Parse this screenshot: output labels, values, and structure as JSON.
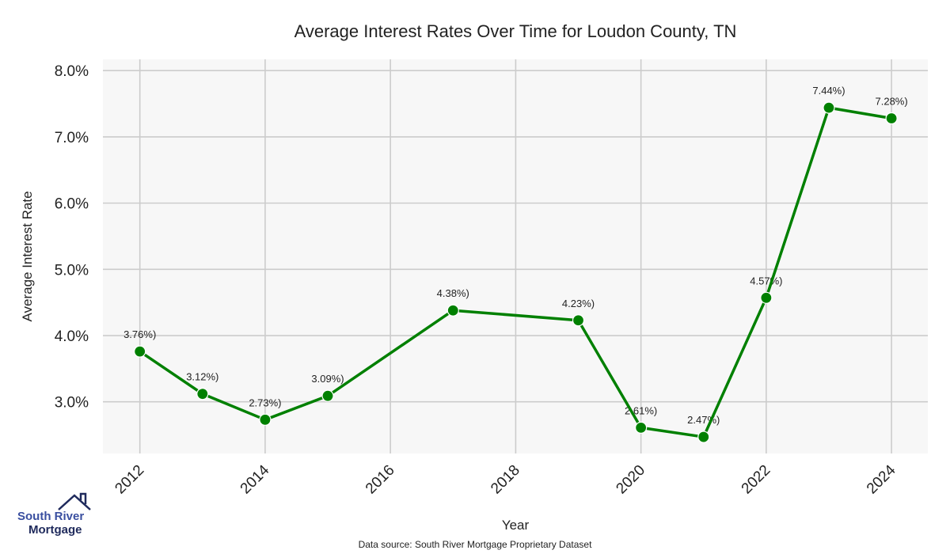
{
  "chart_data": {
    "type": "line",
    "title": "Average Interest Rates Over Time for Loudon County, TN",
    "xlabel": "Year",
    "ylabel": "Average Interest Rate",
    "x": [
      2012,
      2013,
      2014,
      2015,
      2017,
      2019,
      2020,
      2021,
      2022,
      2023,
      2024
    ],
    "values": [
      3.76,
      3.12,
      2.73,
      3.09,
      4.38,
      4.23,
      2.61,
      2.47,
      4.57,
      7.44,
      7.28
    ],
    "data_labels": [
      "3.76%)",
      "3.12%)",
      "2.73%)",
      "3.09%)",
      "4.38%)",
      "4.23%)",
      "2.61%)",
      "2.47%)",
      "4.57%)",
      "7.44%)",
      "7.28%)"
    ],
    "xticks": [
      "2012",
      "2014",
      "2016",
      "2018",
      "2020",
      "2022",
      "2024"
    ],
    "yticks": [
      3.0,
      4.0,
      5.0,
      6.0,
      7.0,
      8.0
    ],
    "ytick_labels": [
      "3.0%",
      "4.0%",
      "5.0%",
      "6.0%",
      "7.0%",
      "8.0%"
    ],
    "xlim": [
      2011.41,
      2024.58
    ],
    "ylim": [
      2.22,
      8.17
    ],
    "grid": true,
    "line_color": "#008000",
    "background": "#f7f7f7",
    "source_note": "Data source: South River Mortgage Proprietary Dataset"
  },
  "logo": {
    "line1": "South River",
    "line2": "Mortgage"
  }
}
